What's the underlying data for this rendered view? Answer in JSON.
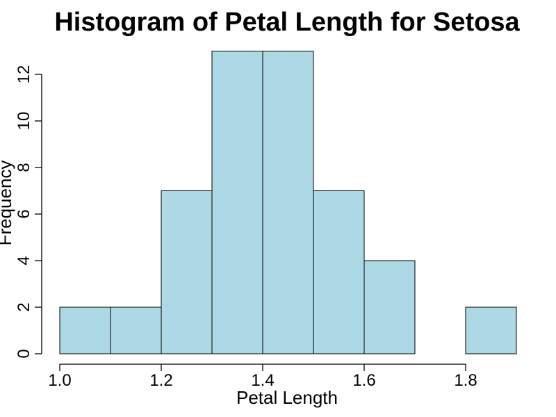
{
  "chart_data": {
    "type": "bar",
    "title": "Histogram of Petal Length for Setosa",
    "xlabel": "Petal Length",
    "ylabel": "Frequency",
    "bins": [
      {
        "start": 1.0,
        "end": 1.1,
        "count": 2
      },
      {
        "start": 1.1,
        "end": 1.2,
        "count": 2
      },
      {
        "start": 1.2,
        "end": 1.3,
        "count": 7
      },
      {
        "start": 1.3,
        "end": 1.4,
        "count": 13
      },
      {
        "start": 1.4,
        "end": 1.5,
        "count": 13
      },
      {
        "start": 1.5,
        "end": 1.6,
        "count": 7
      },
      {
        "start": 1.6,
        "end": 1.7,
        "count": 4
      },
      {
        "start": 1.7,
        "end": 1.8,
        "count": 0
      },
      {
        "start": 1.8,
        "end": 1.9,
        "count": 2
      }
    ],
    "xticks": [
      "1.0",
      "1.2",
      "1.4",
      "1.6",
      "1.8"
    ],
    "yticks": [
      "0",
      "2",
      "4",
      "6",
      "8",
      "10",
      "12"
    ],
    "xlim": [
      1.0,
      1.9
    ],
    "ylim": [
      0,
      13
    ],
    "bar_color": "#add8e6",
    "grid": false,
    "legend": "none"
  }
}
